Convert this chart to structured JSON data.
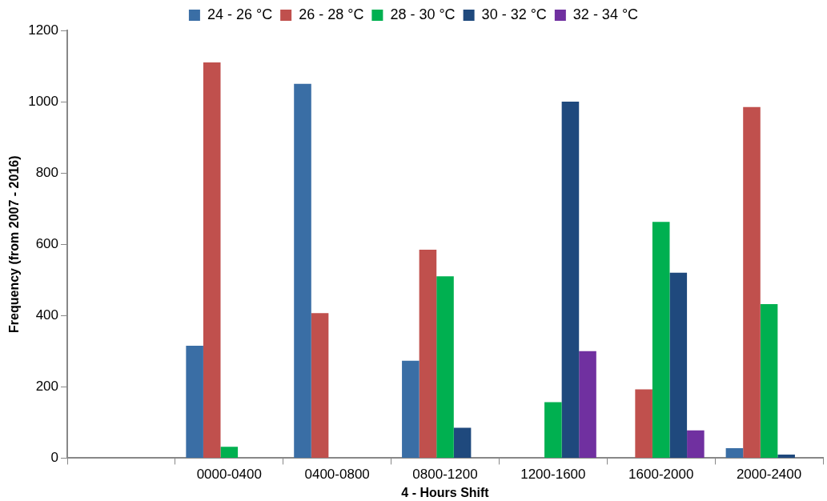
{
  "chart_data": {
    "type": "bar",
    "xlabel": "4 - Hours Shift",
    "ylabel": "Frequency (from 2007 - 2016)",
    "categories": [
      null,
      "0000-0400",
      "0400-0800",
      "0800-1200",
      "1200-1600",
      "1600-2000",
      "2000-2400"
    ],
    "series": [
      {
        "name": "24 - 26 °C",
        "color": "#3a6ea5",
        "values": [
          null,
          315,
          1050,
          273,
          0,
          0,
          28
        ]
      },
      {
        "name": "26 - 28 °C",
        "color": "#c0504d",
        "values": [
          null,
          1110,
          407,
          585,
          0,
          193,
          985
        ]
      },
      {
        "name": "28 - 30 °C",
        "color": "#00b050",
        "values": [
          null,
          32,
          0,
          510,
          157,
          663,
          432
        ]
      },
      {
        "name": "30 - 32 °C",
        "color": "#1f497d",
        "values": [
          null,
          0,
          0,
          85,
          1000,
          520,
          10
        ]
      },
      {
        "name": "32 - 34 °C",
        "color": "#7030a0",
        "values": [
          null,
          0,
          0,
          0,
          300,
          78,
          0
        ]
      }
    ],
    "ylim": [
      0,
      1200
    ],
    "yticks": [
      0,
      200,
      400,
      600,
      800,
      1000,
      1200
    ],
    "grid": false,
    "legend": "top"
  }
}
